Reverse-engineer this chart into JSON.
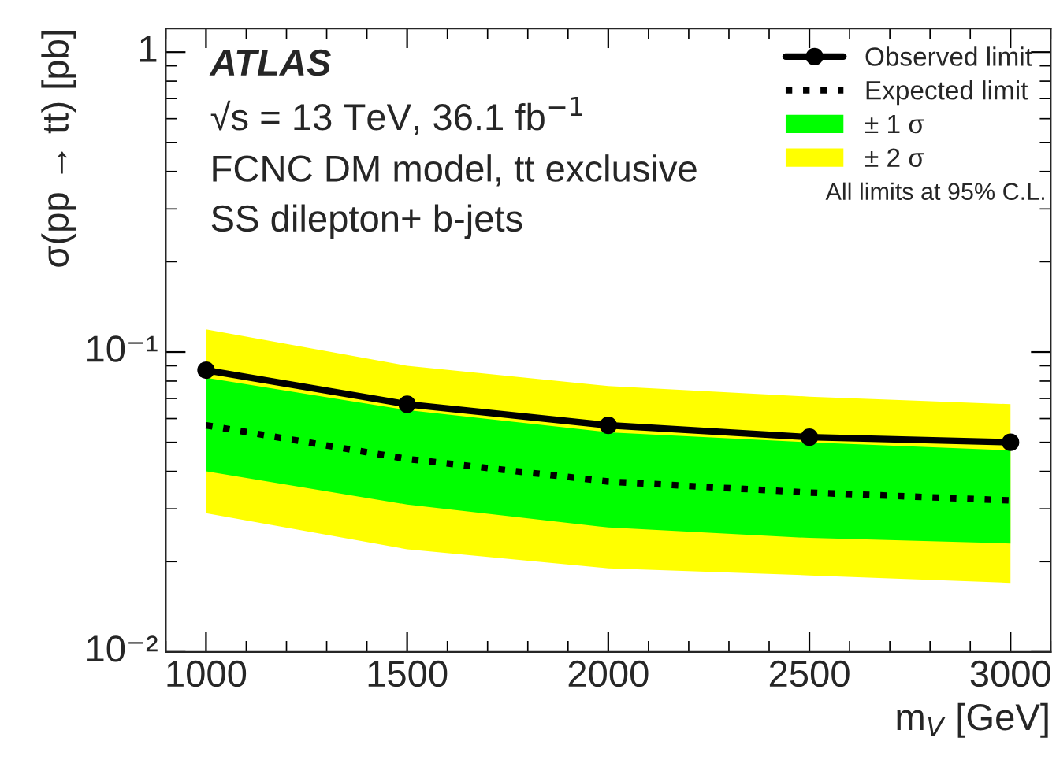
{
  "chart_data": {
    "type": "line",
    "xlabel": "m$_{V}$ [GeV]",
    "ylabel": "σ(pp → tt) [pb]",
    "x": [
      1000,
      1500,
      2000,
      2500,
      3000
    ],
    "series": [
      {
        "name": "Observed limit",
        "color": "#000000",
        "marker": "circle",
        "line_style": "solid",
        "values": [
          0.087,
          0.067,
          0.057,
          0.052,
          0.05
        ]
      },
      {
        "name": "Expected limit",
        "color": "#000000",
        "marker": "none",
        "line_style": "dotted",
        "values": [
          0.057,
          0.044,
          0.037,
          0.034,
          0.032
        ]
      },
      {
        "name": "± 1 σ",
        "type": "area",
        "color": "#00ff00",
        "values": [
          null,
          null,
          null,
          null,
          null
        ],
        "lower": [
          0.04,
          0.031,
          0.026,
          0.024,
          0.023
        ],
        "upper": [
          0.082,
          0.064,
          0.054,
          0.05,
          0.047
        ]
      },
      {
        "name": "± 2 σ",
        "type": "area",
        "color": "#ffff00",
        "values": [
          null,
          null,
          null,
          null,
          null
        ],
        "lower": [
          0.029,
          0.022,
          0.019,
          0.018,
          0.017
        ],
        "upper": [
          0.119,
          0.09,
          0.077,
          0.071,
          0.067
        ]
      }
    ],
    "log": "y",
    "xlim": [
      900,
      3100
    ],
    "xticks": [
      1000,
      1500,
      2000,
      2500,
      3000
    ],
    "ylim": [
      0.01,
      1.2
    ],
    "yticks": [
      {
        "value": 0.01,
        "label": "10⁻²"
      },
      {
        "value": 0.1,
        "label": "10⁻¹"
      },
      1
    ],
    "grid": false,
    "legend": "top right",
    "annotations": [
      "ATLAS",
      "√s = 13 TeV, 36.1 fb$^{−1}$",
      "FCNC DM model, tt exclusive",
      "SS dilepton+ b-jets",
      "All limits at 95% C.L."
    ]
  }
}
